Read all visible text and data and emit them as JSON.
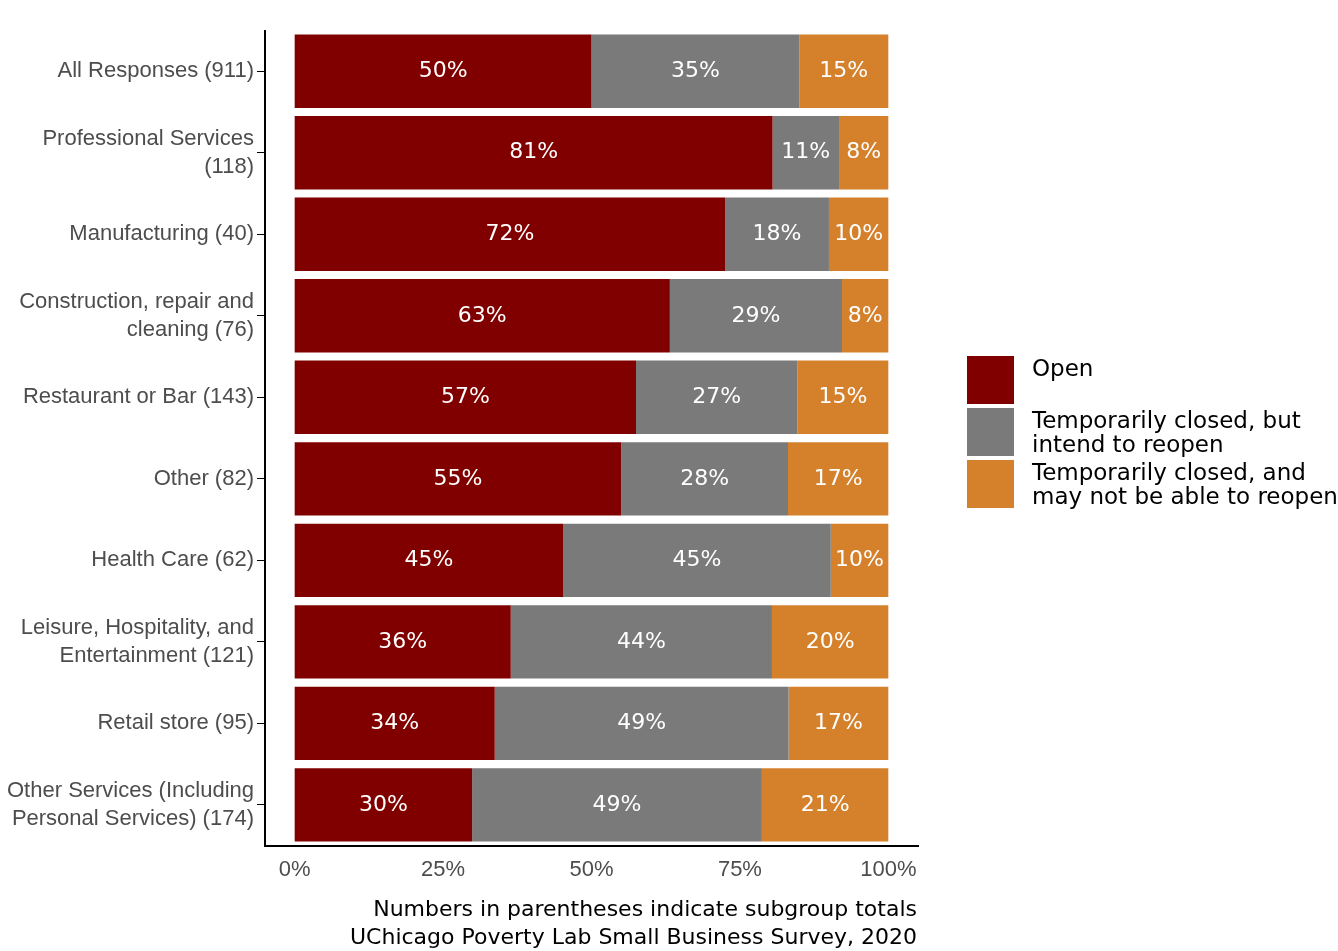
{
  "chart_data": {
    "type": "bar",
    "orientation": "horizontal",
    "stacked": true,
    "categories": [
      "All Responses (911)",
      "Professional Services\n(118)",
      "Manufacturing (40)",
      "Construction, repair and\ncleaning (76)",
      "Restaurant or Bar (143)",
      "Other (82)",
      "Health Care (62)",
      "Leisure, Hospitality, and\nEntertainment (121)",
      "Retail store (95)",
      "Other Services (Including\nPersonal Services) (174)"
    ],
    "series": [
      {
        "name": "Open",
        "color": "#800000",
        "values": [
          50,
          80.5,
          72.5,
          63.2,
          57.5,
          55,
          45.2,
          36.4,
          33.7,
          29.9
        ],
        "value_labels": [
          "50%",
          "81%",
          "72%",
          "63%",
          "57%",
          "55%",
          "45%",
          "36%",
          "34%",
          "30%"
        ]
      },
      {
        "name": "Temporarily closed, but\nintend to reopen",
        "color": "#7a7a7a",
        "values": [
          35,
          11.2,
          17.5,
          29,
          27.2,
          28.1,
          45.1,
          44,
          49.5,
          48.8
        ],
        "value_labels": [
          "35%",
          "11%",
          "18%",
          "29%",
          "27%",
          "28%",
          "45%",
          "44%",
          "49%",
          "49%"
        ]
      },
      {
        "name": "Temporarily closed, and\nmay not be able to reopen",
        "color": "#d5812c",
        "values": [
          15,
          8.3,
          10,
          7.8,
          15.3,
          16.9,
          9.7,
          19.6,
          16.8,
          21.3
        ],
        "value_labels": [
          "15%",
          "8%",
          "10%",
          "8%",
          "15%",
          "17%",
          "10%",
          "20%",
          "17%",
          "21%"
        ]
      }
    ],
    "xlim": [
      -5,
      105
    ],
    "xticks": [
      {
        "value": 0,
        "label": "0%"
      },
      {
        "value": 25,
        "label": "25%"
      },
      {
        "value": 50,
        "label": "50%"
      },
      {
        "value": 75,
        "label": "75%"
      },
      {
        "value": 100,
        "label": "100%"
      }
    ],
    "grid": false,
    "legend": "right",
    "annotations": [
      "Numbers in parentheses indicate subgroup totals",
      "UChicago Poverty Lab Small Business Survey, 2020"
    ]
  }
}
